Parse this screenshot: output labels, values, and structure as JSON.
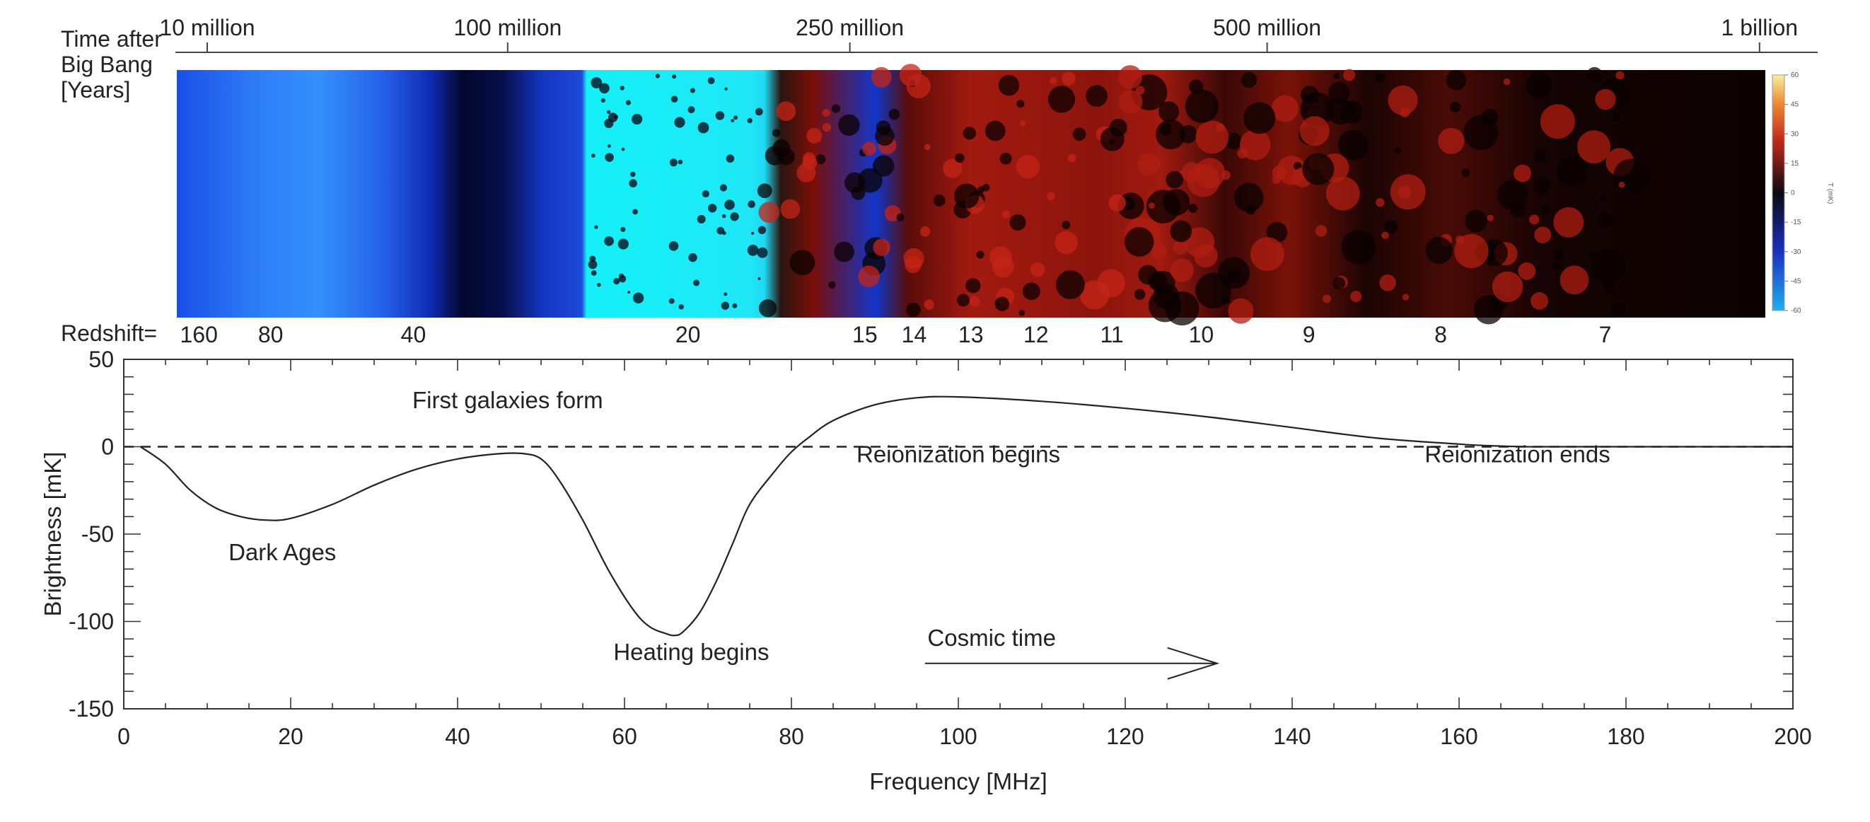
{
  "top_panel": {
    "time_axis_title": [
      "Time after",
      "Big Bang",
      "[Years]"
    ],
    "time_ticks": [
      {
        "label": "10 million",
        "frequency_mhz": 10
      },
      {
        "label": "100 million",
        "frequency_mhz": 46
      },
      {
        "label": "250 million",
        "frequency_mhz": 87
      },
      {
        "label": "500 million",
        "frequency_mhz": 137
      },
      {
        "label": "1 billion",
        "frequency_mhz": 196
      }
    ],
    "redshift_label": "Redshift=",
    "redshift_ticks": [
      {
        "label": "160",
        "frequency_mhz": 9
      },
      {
        "label": "80",
        "frequency_mhz": 17.6
      },
      {
        "label": "40",
        "frequency_mhz": 34.7
      },
      {
        "label": "20",
        "frequency_mhz": 67.6
      },
      {
        "label": "15",
        "frequency_mhz": 88.8
      },
      {
        "label": "14",
        "frequency_mhz": 94.7
      },
      {
        "label": "13",
        "frequency_mhz": 101.5
      },
      {
        "label": "12",
        "frequency_mhz": 109.3
      },
      {
        "label": "11",
        "frequency_mhz": 118.4
      },
      {
        "label": "10",
        "frequency_mhz": 129.1
      },
      {
        "label": "9",
        "frequency_mhz": 142
      },
      {
        "label": "8",
        "frequency_mhz": 157.8
      },
      {
        "label": "7",
        "frequency_mhz": 177.5
      }
    ],
    "colorbar": {
      "title": "T (mK)",
      "range": [
        -60,
        60
      ],
      "ticks": [
        "60",
        "45",
        "30",
        "15",
        "0",
        "-15",
        "-30",
        "-45",
        "-60"
      ],
      "colors": {
        "low": "#1fb0ee",
        "mid": "#0a0a10",
        "high": "#f7f0a0"
      }
    }
  },
  "chart_data": {
    "type": "line",
    "title": "",
    "xlabel": "Frequency [MHz]",
    "ylabel": "Brightness [mK]",
    "xlim": [
      0,
      200
    ],
    "ylim": [
      -150,
      50
    ],
    "x_ticks": [
      0,
      20,
      40,
      60,
      80,
      100,
      120,
      140,
      160,
      180,
      200
    ],
    "y_ticks": [
      50,
      0,
      -50,
      -100,
      -150
    ],
    "series": [
      {
        "x": [
          2,
          5,
          8,
          11,
          14,
          17,
          20,
          25,
          30,
          35,
          40,
          45,
          48,
          50,
          52,
          55,
          58,
          61,
          63,
          65,
          66,
          67,
          69,
          71,
          73,
          75,
          78,
          80,
          82,
          85,
          90,
          95,
          100,
          110,
          120,
          130,
          140,
          150,
          160,
          163,
          166,
          168,
          170,
          180,
          190,
          200
        ],
        "y": [
          0,
          -10,
          -25,
          -35,
          -40,
          -42,
          -41,
          -33,
          -22,
          -13,
          -7,
          -4,
          -4,
          -7,
          -18,
          -42,
          -70,
          -93,
          -103,
          -107,
          -108,
          -106,
          -95,
          -77,
          -55,
          -33,
          -14,
          -3,
          5,
          15,
          24,
          28,
          28.5,
          26,
          22,
          17,
          11,
          5,
          1.5,
          0.7,
          0.2,
          0,
          0,
          0,
          0,
          0
        ]
      }
    ],
    "reference_line": {
      "y": 0,
      "style": "dashed"
    },
    "annotations": [
      {
        "text": "First galaxies form",
        "x": 46,
        "y": 22
      },
      {
        "text": "Dark Ages",
        "x": 19,
        "y": -65
      },
      {
        "text": "Heating begins",
        "x": 68,
        "y": -122
      },
      {
        "text": "Reionization begins",
        "x": 100,
        "y": -9
      },
      {
        "text": "Reionization ends",
        "x": 167,
        "y": -9
      },
      {
        "text": "Cosmic time",
        "x": 104,
        "y": -114
      }
    ],
    "arrow": {
      "x_start": 96,
      "x_end": 131,
      "y": -124,
      "label": "Cosmic time"
    },
    "grid": false,
    "legend": "none"
  }
}
